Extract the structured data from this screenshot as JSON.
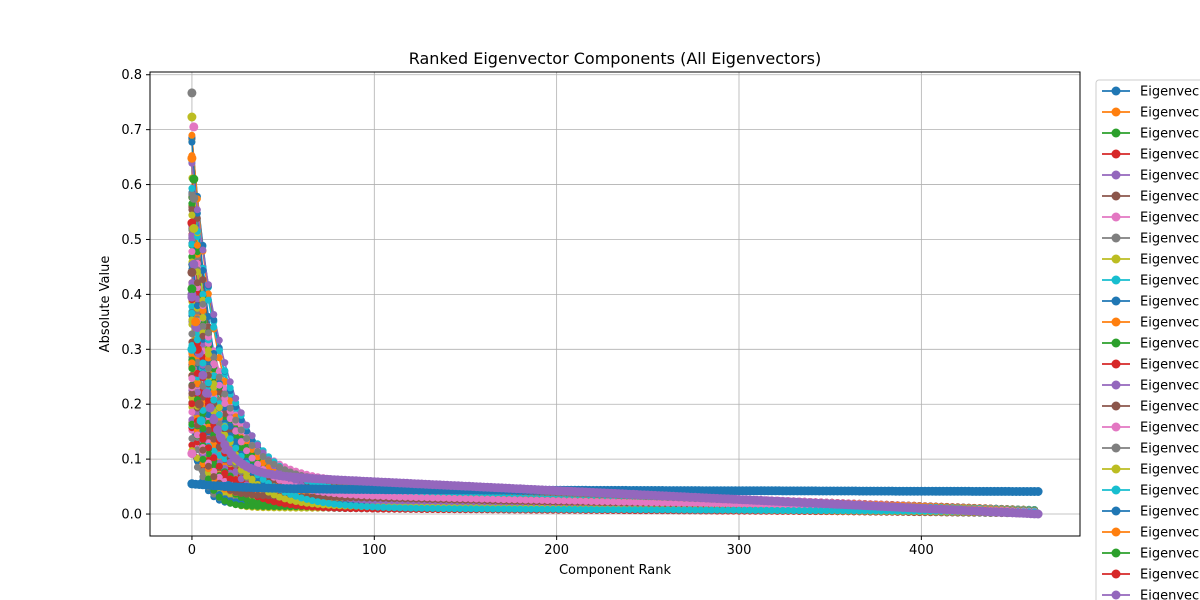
{
  "chart_data": {
    "type": "line",
    "title": "Ranked Eigenvector Components (All Eigenvectors)",
    "xlabel": "Component Rank",
    "ylabel": "Absolute Value",
    "xlim": [
      -23,
      487
    ],
    "ylim": [
      -0.04,
      0.805
    ],
    "xticks": [
      "0",
      "100",
      "200",
      "300",
      "400"
    ],
    "yticks": [
      "0.0",
      "0.1",
      "0.2",
      "0.3",
      "0.4",
      "0.5",
      "0.6",
      "0.7",
      "0.8"
    ],
    "grid": true,
    "legend_placement": "outside-right",
    "series_count": 465,
    "palette": [
      "#1f77b4",
      "#ff7f0e",
      "#2ca02c",
      "#d62728",
      "#9467bd",
      "#8c564b",
      "#e377c2",
      "#7f7f7f",
      "#bcbd22",
      "#17becf"
    ],
    "series": [
      {
        "name": "Eigenvec",
        "color": "#1f77b4",
        "peak": 0.055,
        "tail": 0.04,
        "decay": 30,
        "plateau": 0.045,
        "points": [
          [
            0,
            0.055
          ],
          [
            20,
            0.052
          ],
          [
            100,
            0.048
          ],
          [
            200,
            0.046
          ],
          [
            300,
            0.045
          ],
          [
            400,
            0.043
          ],
          [
            464,
            0.041
          ]
        ]
      },
      {
        "name": "Eigenvec",
        "color": "#ff7f0e",
        "peak": 0.648,
        "tail": 0.001,
        "decay": 6,
        "plateau": 0.06,
        "points": [
          [
            0,
            0.648
          ],
          [
            2,
            0.35
          ],
          [
            10,
            0.15
          ],
          [
            30,
            0.09
          ],
          [
            100,
            0.05
          ],
          [
            250,
            0.025
          ],
          [
            464,
            0.001
          ]
        ]
      },
      {
        "name": "Eigenvec",
        "color": "#2ca02c",
        "peak": 0.61,
        "tail": 0.001,
        "decay": 5,
        "plateau": 0.055,
        "points": [
          [
            0,
            0.41
          ],
          [
            1,
            0.61
          ],
          [
            5,
            0.2
          ],
          [
            20,
            0.1
          ],
          [
            100,
            0.055
          ],
          [
            250,
            0.03
          ],
          [
            464,
            0.001
          ]
        ]
      },
      {
        "name": "Eigenvec",
        "color": "#d62728",
        "peak": 0.53,
        "tail": 0.001,
        "decay": 6,
        "plateau": 0.06,
        "points": [
          [
            0,
            0.53
          ],
          [
            3,
            0.3
          ],
          [
            15,
            0.12
          ],
          [
            50,
            0.08
          ],
          [
            150,
            0.045
          ],
          [
            300,
            0.02
          ],
          [
            464,
            0.001
          ]
        ]
      },
      {
        "name": "Eigenvec",
        "color": "#9467bd",
        "peak": 0.455,
        "tail": 0.0,
        "decay": 14,
        "plateau": 0.07,
        "points": [
          [
            0,
            0.395
          ],
          [
            1,
            0.455
          ],
          [
            10,
            0.15
          ],
          [
            30,
            0.1
          ],
          [
            100,
            0.07
          ],
          [
            250,
            0.035
          ],
          [
            464,
            0.0
          ]
        ]
      },
      {
        "name": "Eigenvec",
        "color": "#8c564b",
        "peak": 0.44,
        "tail": 0.0,
        "decay": 5,
        "plateau": 0.05,
        "points": [
          [
            0,
            0.44
          ],
          [
            4,
            0.2
          ],
          [
            20,
            0.08
          ],
          [
            100,
            0.04
          ],
          [
            250,
            0.02
          ],
          [
            464,
            0.0
          ]
        ]
      },
      {
        "name": "Eigenvec",
        "color": "#e377c2",
        "peak": 0.705,
        "tail": 0.001,
        "decay": 4,
        "plateau": 0.04,
        "points": [
          [
            0,
            0.11
          ],
          [
            1,
            0.705
          ],
          [
            3,
            0.33
          ],
          [
            10,
            0.12
          ],
          [
            50,
            0.06
          ],
          [
            200,
            0.03
          ],
          [
            464,
            0.001
          ]
        ]
      },
      {
        "name": "Eigenvec",
        "color": "#7f7f7f",
        "peak": 0.767,
        "tail": 0.001,
        "decay": 4,
        "plateau": 0.05,
        "points": [
          [
            0,
            0.767
          ],
          [
            1,
            0.575
          ],
          [
            5,
            0.2
          ],
          [
            20,
            0.09
          ],
          [
            100,
            0.05
          ],
          [
            300,
            0.02
          ],
          [
            464,
            0.001
          ]
        ]
      },
      {
        "name": "Eigenvec",
        "color": "#bcbd22",
        "peak": 0.723,
        "tail": 0.001,
        "decay": 5,
        "plateau": 0.055,
        "points": [
          [
            0,
            0.723
          ],
          [
            1,
            0.52
          ],
          [
            5,
            0.25
          ],
          [
            20,
            0.1
          ],
          [
            100,
            0.05
          ],
          [
            300,
            0.02
          ],
          [
            464,
            0.001
          ]
        ]
      },
      {
        "name": "Eigenvec",
        "color": "#17becf",
        "peak": 0.3,
        "tail": 0.0,
        "decay": 12,
        "plateau": 0.06,
        "points": [
          [
            0,
            0.3
          ],
          [
            5,
            0.17
          ],
          [
            20,
            0.1
          ],
          [
            100,
            0.055
          ],
          [
            300,
            0.02
          ],
          [
            464,
            0.0
          ]
        ]
      },
      {
        "name": "Eigenvec",
        "color": "#1f77b4"
      },
      {
        "name": "Eigenvec",
        "color": "#ff7f0e"
      },
      {
        "name": "Eigenvec",
        "color": "#2ca02c"
      },
      {
        "name": "Eigenvec",
        "color": "#d62728"
      },
      {
        "name": "Eigenvec",
        "color": "#9467bd"
      },
      {
        "name": "Eigenvec",
        "color": "#8c564b"
      },
      {
        "name": "Eigenvec",
        "color": "#e377c2"
      },
      {
        "name": "Eigenvec",
        "color": "#7f7f7f"
      },
      {
        "name": "Eigenvec",
        "color": "#bcbd22"
      },
      {
        "name": "Eigenvec",
        "color": "#17becf"
      },
      {
        "name": "Eigenvec",
        "color": "#1f77b4"
      },
      {
        "name": "Eigenvec",
        "color": "#ff7f0e"
      },
      {
        "name": "Eigenvec",
        "color": "#2ca02c"
      },
      {
        "name": "Eigenvec",
        "color": "#d62728"
      },
      {
        "name": "Eigenvec",
        "color": "#9467bd"
      }
    ]
  }
}
